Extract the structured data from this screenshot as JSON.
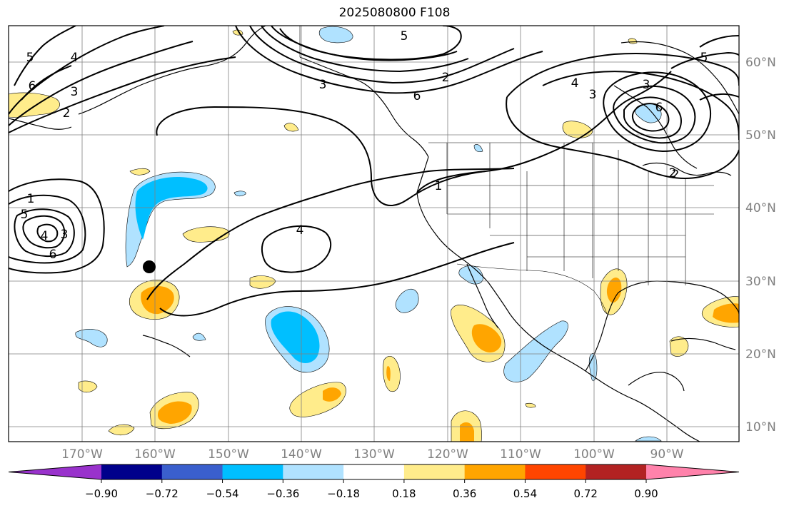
{
  "title": "2025080800 F108",
  "lon_labels": [
    "170°W",
    "160°W",
    "150°W",
    "140°W",
    "130°W",
    "120°W",
    "110°W",
    "100°W",
    "90°W"
  ],
  "lat_labels": [
    "60°N",
    "50°N",
    "40°N",
    "30°N",
    "20°N",
    "10°N"
  ],
  "colorbar": {
    "colors": [
      "#9932cc",
      "#00008b",
      "#3a5fcd",
      "#00bfff",
      "#b0e2ff",
      "#ffffff",
      "#ffec8b",
      "#ffa500",
      "#ff4500",
      "#b22222",
      "#ff82ab"
    ],
    "tick_labels": [
      "−0.90",
      "−0.72",
      "−0.54",
      "−0.36",
      "−0.18",
      "0.18",
      "0.36",
      "0.54",
      "0.72",
      "0.90"
    ]
  },
  "contour_labels": [
    "5",
    "4",
    "3",
    "2",
    "6",
    "1",
    "5",
    "4",
    "3",
    "6",
    "5",
    "4",
    "3",
    "2",
    "6",
    "1",
    "2",
    "4",
    "5",
    "3",
    "3",
    "2",
    "6"
  ]
}
